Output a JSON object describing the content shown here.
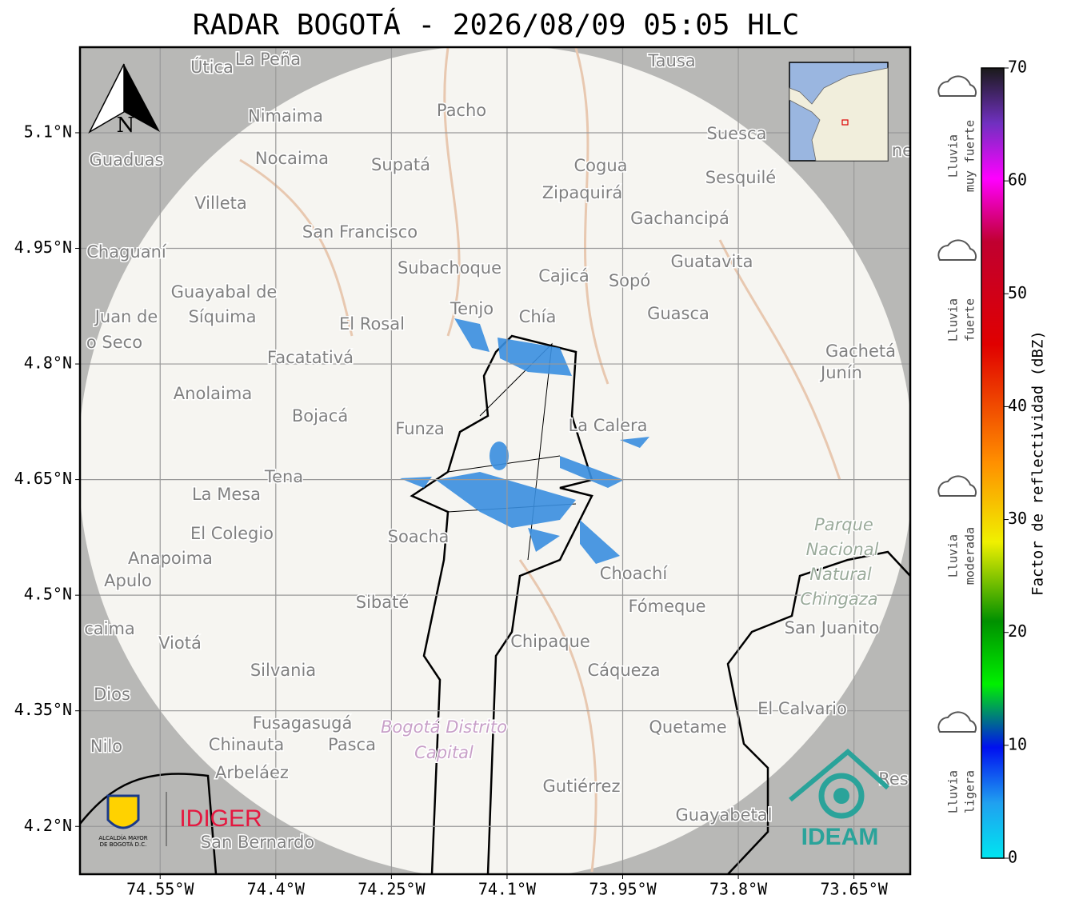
{
  "title": "RADAR BOGOTÁ - 2026/08/09 05:05 HLC",
  "map": {
    "xlim": [
      -74.654,
      -73.577
    ],
    "ylim": [
      4.138,
      5.211
    ],
    "xticks": [
      {
        "value": -74.55,
        "label": "74.55°W"
      },
      {
        "value": -74.4,
        "label": "74.4°W"
      },
      {
        "value": -74.25,
        "label": "74.25°W"
      },
      {
        "value": -74.1,
        "label": "74.1°W"
      },
      {
        "value": -73.95,
        "label": "73.95°W"
      },
      {
        "value": -73.8,
        "label": "73.8°W"
      },
      {
        "value": -73.65,
        "label": "73.65°W"
      }
    ],
    "yticks": [
      {
        "value": 5.1,
        "label": "5.1°N"
      },
      {
        "value": 4.95,
        "label": "4.95°N"
      },
      {
        "value": 4.8,
        "label": "4.8°N"
      },
      {
        "value": 4.65,
        "label": "4.65°N"
      },
      {
        "value": 4.5,
        "label": "4.5°N"
      },
      {
        "value": 4.35,
        "label": "4.35°N"
      },
      {
        "value": 4.2,
        "label": "4.2°N"
      }
    ],
    "north": "N",
    "places": [
      "Útica",
      "La Peña",
      "Tausa",
      "Pacho",
      "Nimaima",
      "Guaduas",
      "Nocaima",
      "Supatá",
      "Cogua",
      "Suesca",
      "Zipaquirá",
      "Sesquilé",
      "Villeta",
      "Gachancipá",
      "San Francisco",
      "Chaguaní",
      "Guatavita",
      "Subachoque",
      "Cajicá",
      "Sopó",
      "Guayabal de",
      "Síquima",
      "Juan de",
      "o Seco",
      "Tenjo",
      "Chía",
      "Guasca",
      "El Rosal",
      "Facatativá",
      "Gachetá",
      "Junín",
      "Anolaima",
      "Bojacá",
      "Funza",
      "La Calera",
      "Tena",
      "La Mesa",
      "Soacha",
      "El Colegio",
      "Anapoima",
      "Apulo",
      "Choachí",
      "Sibaté",
      "Fómeque",
      "San Juanito",
      "caima",
      "Viotá",
      "Chipaque",
      "Silvania",
      "Cáqueza",
      "Dios",
      "El Calvario",
      "Fusagasugá",
      "Quetame",
      "Nilo",
      "Chinauta",
      "Pasca",
      "Arbeláez",
      "Gutiérrez",
      "Res",
      "Guayabetal",
      "San Bernardo",
      "ne"
    ],
    "park": [
      "Parque",
      "Nacional",
      "Natural",
      "Chingaza"
    ],
    "district": [
      "Bogotá Distrito",
      "Capital"
    ]
  },
  "logos": {
    "alcaldia": [
      "ALCALDÍA MAYOR",
      "DE BOGOTÁ D.C."
    ],
    "idiger": "IDIGER",
    "ideam": "IDEAM"
  },
  "colorbar": {
    "lim": [
      0,
      70
    ],
    "ticks": [
      0,
      10,
      20,
      30,
      40,
      50,
      60,
      70
    ],
    "label": "Factor de reflectividad (dBZ)"
  },
  "rain_levels": [
    [
      "Lluvia",
      "muy fuerte"
    ],
    [
      "Lluvia",
      "fuerte"
    ],
    [
      "Lluvia",
      "moderada"
    ],
    [
      "Lluvia",
      "ligera"
    ]
  ]
}
